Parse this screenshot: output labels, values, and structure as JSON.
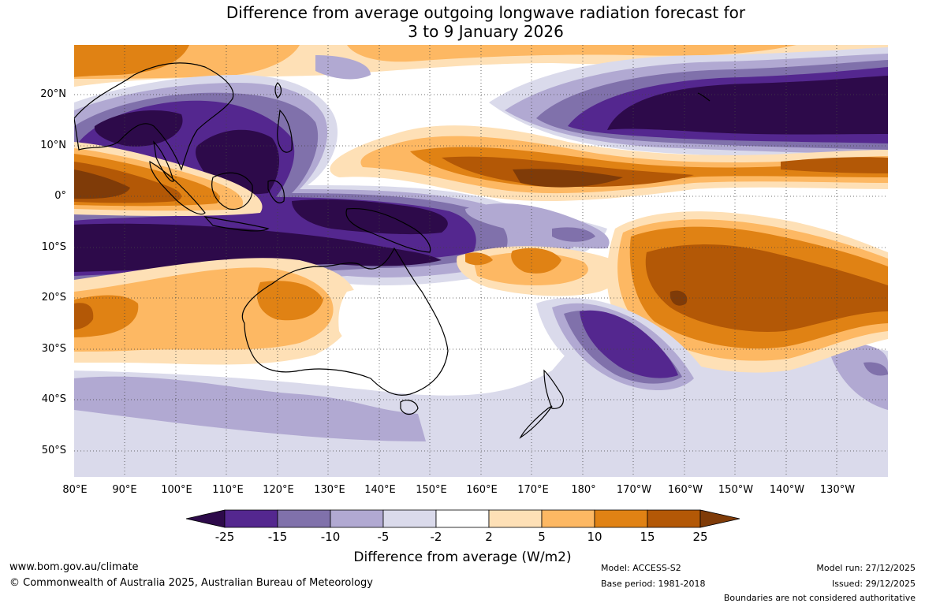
{
  "title": {
    "line1": "Difference from average outgoing longwave radiation forecast for",
    "line2": "3 to 9 January 2026"
  },
  "map": {
    "lat_labels": [
      "20°N",
      "10°N",
      "0°",
      "10°S",
      "20°S",
      "30°S",
      "40°S",
      "50°S"
    ],
    "lon_labels": [
      "80°E",
      "90°E",
      "100°E",
      "110°E",
      "120°E",
      "130°E",
      "140°E",
      "150°E",
      "160°E",
      "170°E",
      "180°",
      "170°W",
      "160°W",
      "150°W",
      "140°W",
      "130°W"
    ]
  },
  "colorbar": {
    "title": "Difference from average (W/m2)",
    "ticks": [
      "-25",
      "-15",
      "-10",
      "-5",
      "-2",
      "2",
      "5",
      "10",
      "15",
      "25"
    ],
    "colors": [
      "#2d0a4a",
      "#54278f",
      "#8071ab",
      "#b1a9d2",
      "#dadaeb",
      "#ffffff",
      "#fee0b6",
      "#fdb863",
      "#e08214",
      "#b35806",
      "#7f3b08"
    ]
  },
  "footer": {
    "website": "www.bom.gov.au/climate",
    "copyright": "© Commonwealth of Australia 2025, Australian Bureau of Meteorology",
    "model": "Model: ACCESS-S2",
    "base_period": "Base period: 1981-2018",
    "model_run": "Model run: 27/12/2025",
    "issued": "Issued: 29/12/2025",
    "disclaimer": "Boundaries are not considered authoritative"
  }
}
